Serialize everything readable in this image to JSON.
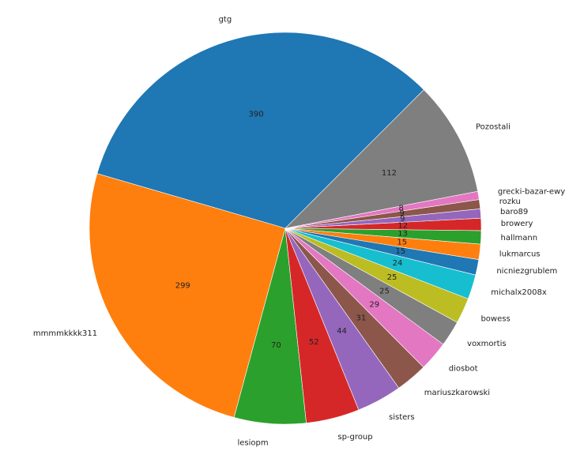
{
  "chart_data": {
    "type": "pie",
    "title": "",
    "startangle_deg": 45,
    "direction": "counterclockwise",
    "slices": [
      {
        "label": "gtg",
        "value": 390,
        "color": "#1f77b4"
      },
      {
        "label": "mmmmkkkk311",
        "value": 299,
        "color": "#ff7f0e"
      },
      {
        "label": "lesiopm",
        "value": 70,
        "color": "#2ca02c"
      },
      {
        "label": "sp-group",
        "value": 52,
        "color": "#d62728"
      },
      {
        "label": "sisters",
        "value": 44,
        "color": "#9467bd"
      },
      {
        "label": "mariuszkarowski",
        "value": 31,
        "color": "#8c564b"
      },
      {
        "label": "diosbot",
        "value": 29,
        "color": "#e377c2"
      },
      {
        "label": "voxmortis",
        "value": 25,
        "color": "#7f7f7f"
      },
      {
        "label": "bowess",
        "value": 25,
        "color": "#bcbd22"
      },
      {
        "label": "michalx2008x",
        "value": 24,
        "color": "#17becf"
      },
      {
        "label": "nicniezgrublem",
        "value": 15,
        "color": "#1f77b4"
      },
      {
        "label": "lukmarcus",
        "value": 15,
        "color": "#ff7f0e"
      },
      {
        "label": "hallmann",
        "value": 13,
        "color": "#2ca02c"
      },
      {
        "label": "browery",
        "value": 12,
        "color": "#d62728"
      },
      {
        "label": "baro89",
        "value": 9,
        "color": "#9467bd"
      },
      {
        "label": "rozku",
        "value": 9,
        "color": "#8c564b"
      },
      {
        "label": "grecki-bazar-ewy",
        "value": 8,
        "color": "#e377c2"
      },
      {
        "label": "Pozostali",
        "value": 112,
        "color": "#7f7f7f"
      }
    ]
  }
}
